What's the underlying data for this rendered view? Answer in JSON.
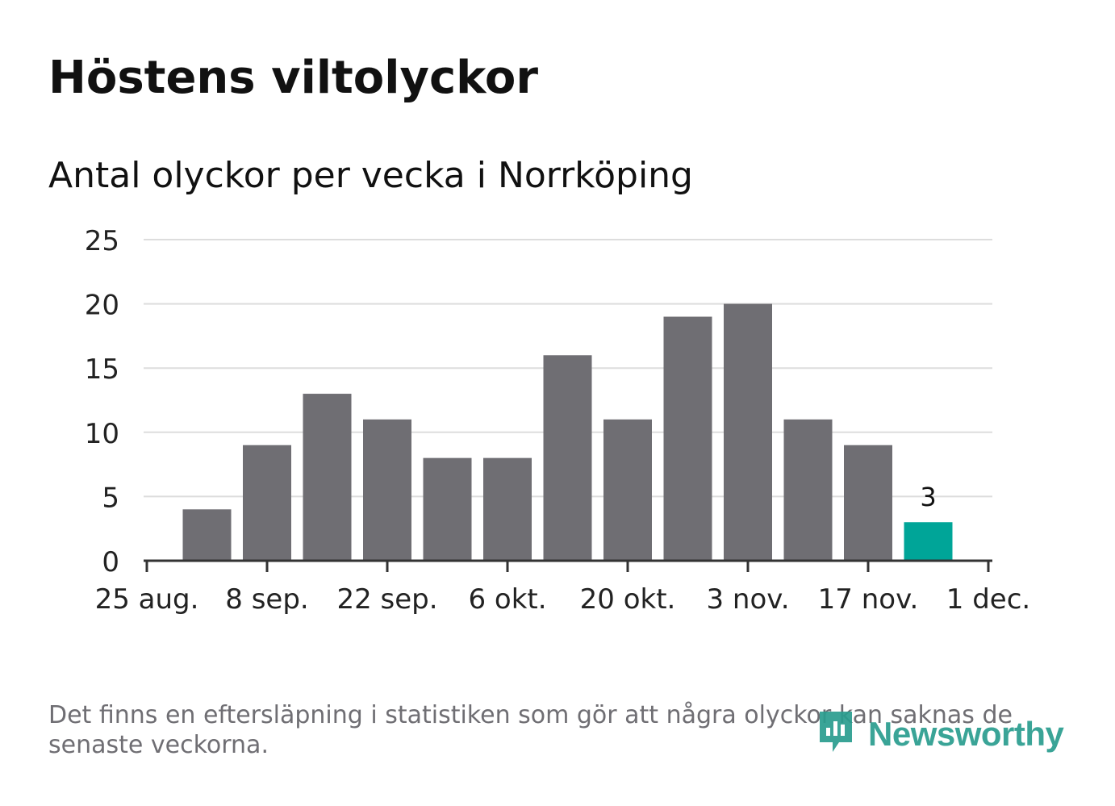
{
  "header": {
    "title": "Höstens viltolyckor",
    "subtitle": "Antal olyckor per vecka i Norrköping"
  },
  "chart_data": {
    "type": "bar",
    "title": "Höstens viltolyckor",
    "subtitle": "Antal olyckor per vecka i Norrköping",
    "x_tick_labels": [
      "25 aug.",
      "8 sep.",
      "22 sep.",
      "6 okt.",
      "20 okt.",
      "3 nov.",
      "17 nov.",
      "1 dec."
    ],
    "y_tick_labels": [
      "0",
      "5",
      "10",
      "15",
      "20",
      "25"
    ],
    "ylim": [
      0,
      25
    ],
    "grid": true,
    "xlabel": "",
    "ylabel": "",
    "values": [
      4,
      9,
      13,
      11,
      8,
      8,
      16,
      11,
      19,
      20,
      11,
      9,
      3
    ],
    "highlight_last": true,
    "data_label_last": "3",
    "colors": {
      "bar": "#6f6e73",
      "highlight": "#00a598",
      "grid": "#dddddd",
      "axis": "#333333",
      "tick_text": "#222222"
    }
  },
  "footer": {
    "note": "Det finns en eftersläpning i statistiken som gör att några olyckor kan saknas de senaste veckorna.",
    "logo_text": "Newsworthy",
    "logo_icon": "newsworthy-logo-icon",
    "logo_color": "#2a9d8f"
  }
}
